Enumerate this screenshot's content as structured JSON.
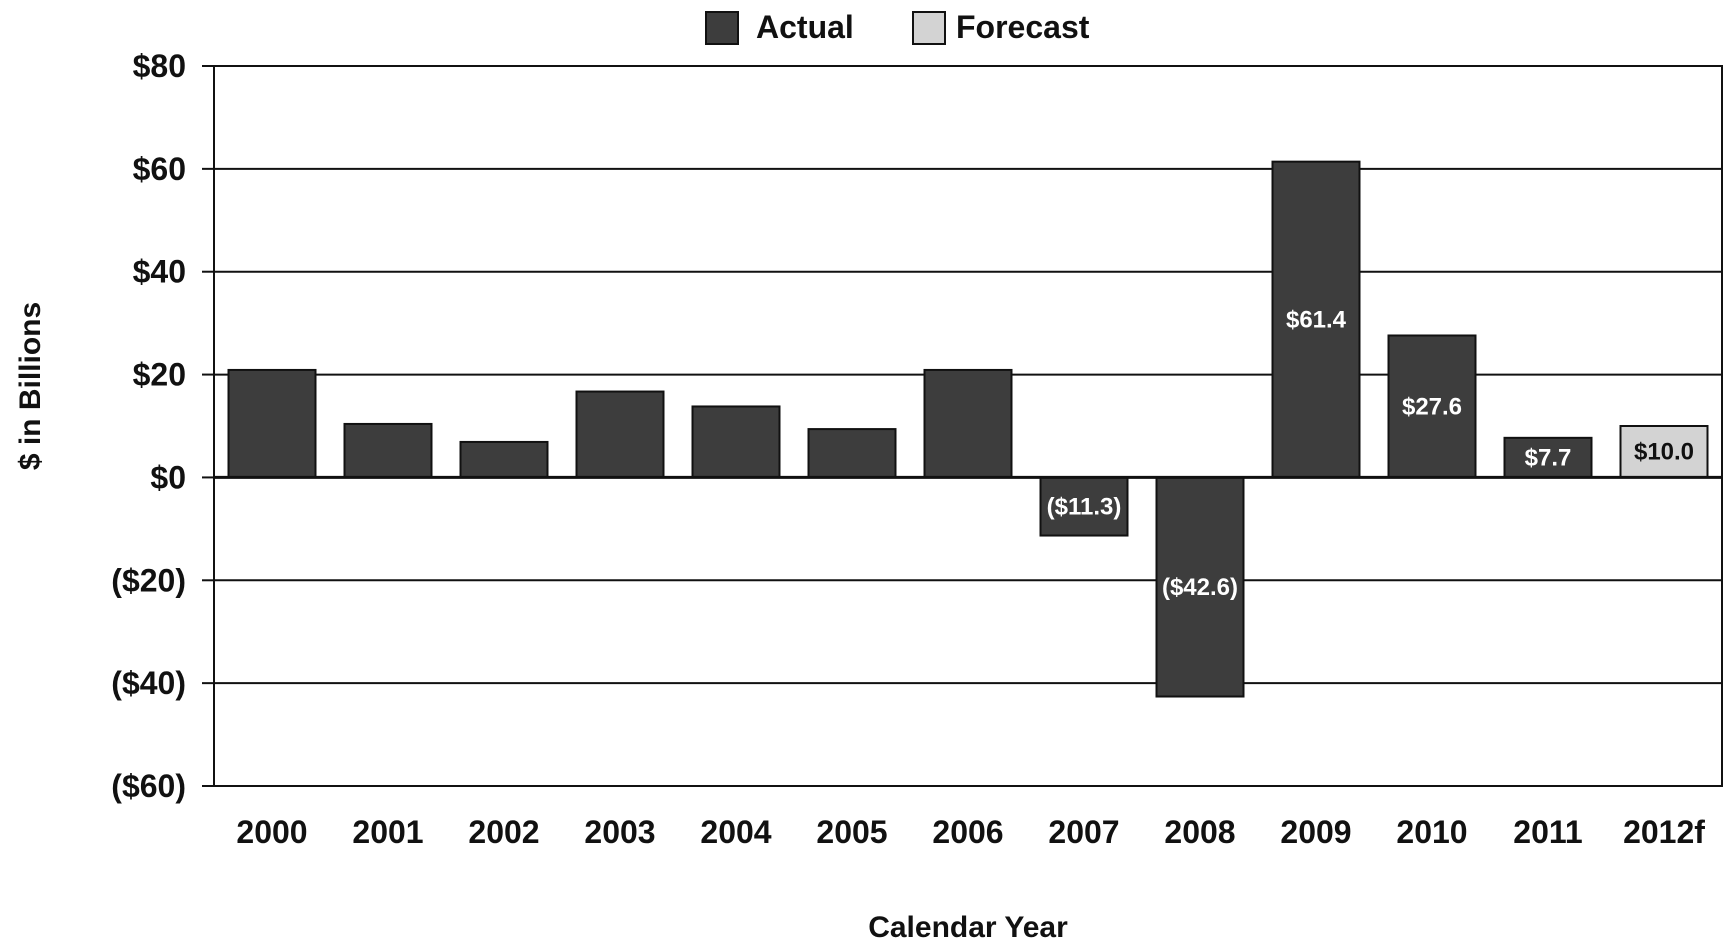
{
  "chart_data": {
    "type": "bar",
    "title": "",
    "xlabel": "Calendar Year",
    "ylabel": "$ in Billions",
    "categories": [
      "2000",
      "2001",
      "2002",
      "2003",
      "2004",
      "2005",
      "2006",
      "2007",
      "2008",
      "2009",
      "2010",
      "2011",
      "2012f"
    ],
    "values": [
      20.9,
      10.4,
      6.9,
      16.7,
      13.8,
      9.4,
      20.9,
      -11.3,
      -42.6,
      61.4,
      27.6,
      7.7,
      10.0
    ],
    "bar_status": [
      "Actual",
      "Actual",
      "Actual",
      "Actual",
      "Actual",
      "Actual",
      "Actual",
      "Actual",
      "Actual",
      "Actual",
      "Actual",
      "Actual",
      "Forecast"
    ],
    "data_labels": [
      null,
      null,
      null,
      null,
      null,
      null,
      null,
      "($11.3)",
      "($42.6)",
      "$61.4",
      "$27.6",
      "$7.7",
      "$10.0"
    ],
    "ylim": [
      -60,
      80
    ],
    "y_ticks": [
      80,
      60,
      40,
      20,
      0,
      -20,
      -40,
      -60
    ],
    "y_tick_labels": [
      "$80",
      "$60",
      "$40",
      "$20",
      "$0",
      "($20)",
      "($40)",
      "($60)"
    ],
    "grid": true,
    "legend": {
      "placement": "top-center",
      "entries": [
        {
          "label": "Actual",
          "color": "#3d3d3d"
        },
        {
          "label": "Forecast",
          "color": "#d3d3d3"
        }
      ]
    },
    "colors": {
      "actual": "#3d3d3d",
      "forecast": "#d3d3d3",
      "label_on_dark": "#ffffff",
      "label_on_light": "#111111"
    }
  }
}
